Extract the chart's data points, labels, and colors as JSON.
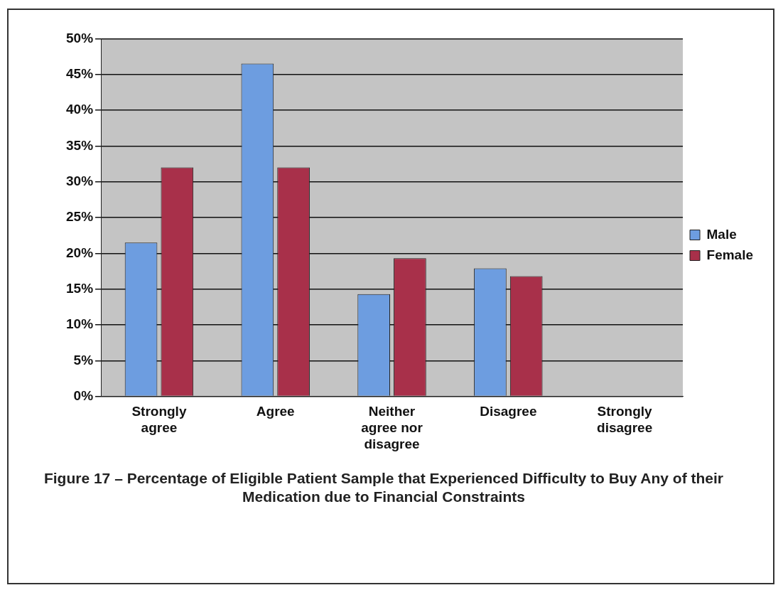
{
  "chart_data": {
    "type": "bar",
    "title": "Figure 17 – Percentage of Eligible Patient Sample that  Experienced Difficulty to Buy Any of their Medication due to Financial Constraints",
    "categories": [
      "Strongly agree",
      "Agree",
      "Neither agree nor disagree",
      "Disagree",
      "Strongly disagree"
    ],
    "series": [
      {
        "name": "Male",
        "color": "#6d9de0",
        "values": [
          21.5,
          46.5,
          14.3,
          17.9,
          0
        ]
      },
      {
        "name": "Female",
        "color": "#a8304a",
        "values": [
          32,
          32,
          19.3,
          16.8,
          0
        ]
      }
    ],
    "ylim": [
      0,
      50
    ],
    "yticks": [
      {
        "value": 0,
        "label": "0%"
      },
      {
        "value": 5,
        "label": "5%"
      },
      {
        "value": 10,
        "label": "10%"
      },
      {
        "value": 15,
        "label": "15%"
      },
      {
        "value": 20,
        "label": "20%"
      },
      {
        "value": 25,
        "label": "25%"
      },
      {
        "value": 30,
        "label": "30%"
      },
      {
        "value": 35,
        "label": "35%"
      },
      {
        "value": 40,
        "label": "40%"
      },
      {
        "value": 45,
        "label": "45%"
      },
      {
        "value": 50,
        "label": "50%"
      }
    ],
    "grid": "y",
    "legend": "right"
  }
}
